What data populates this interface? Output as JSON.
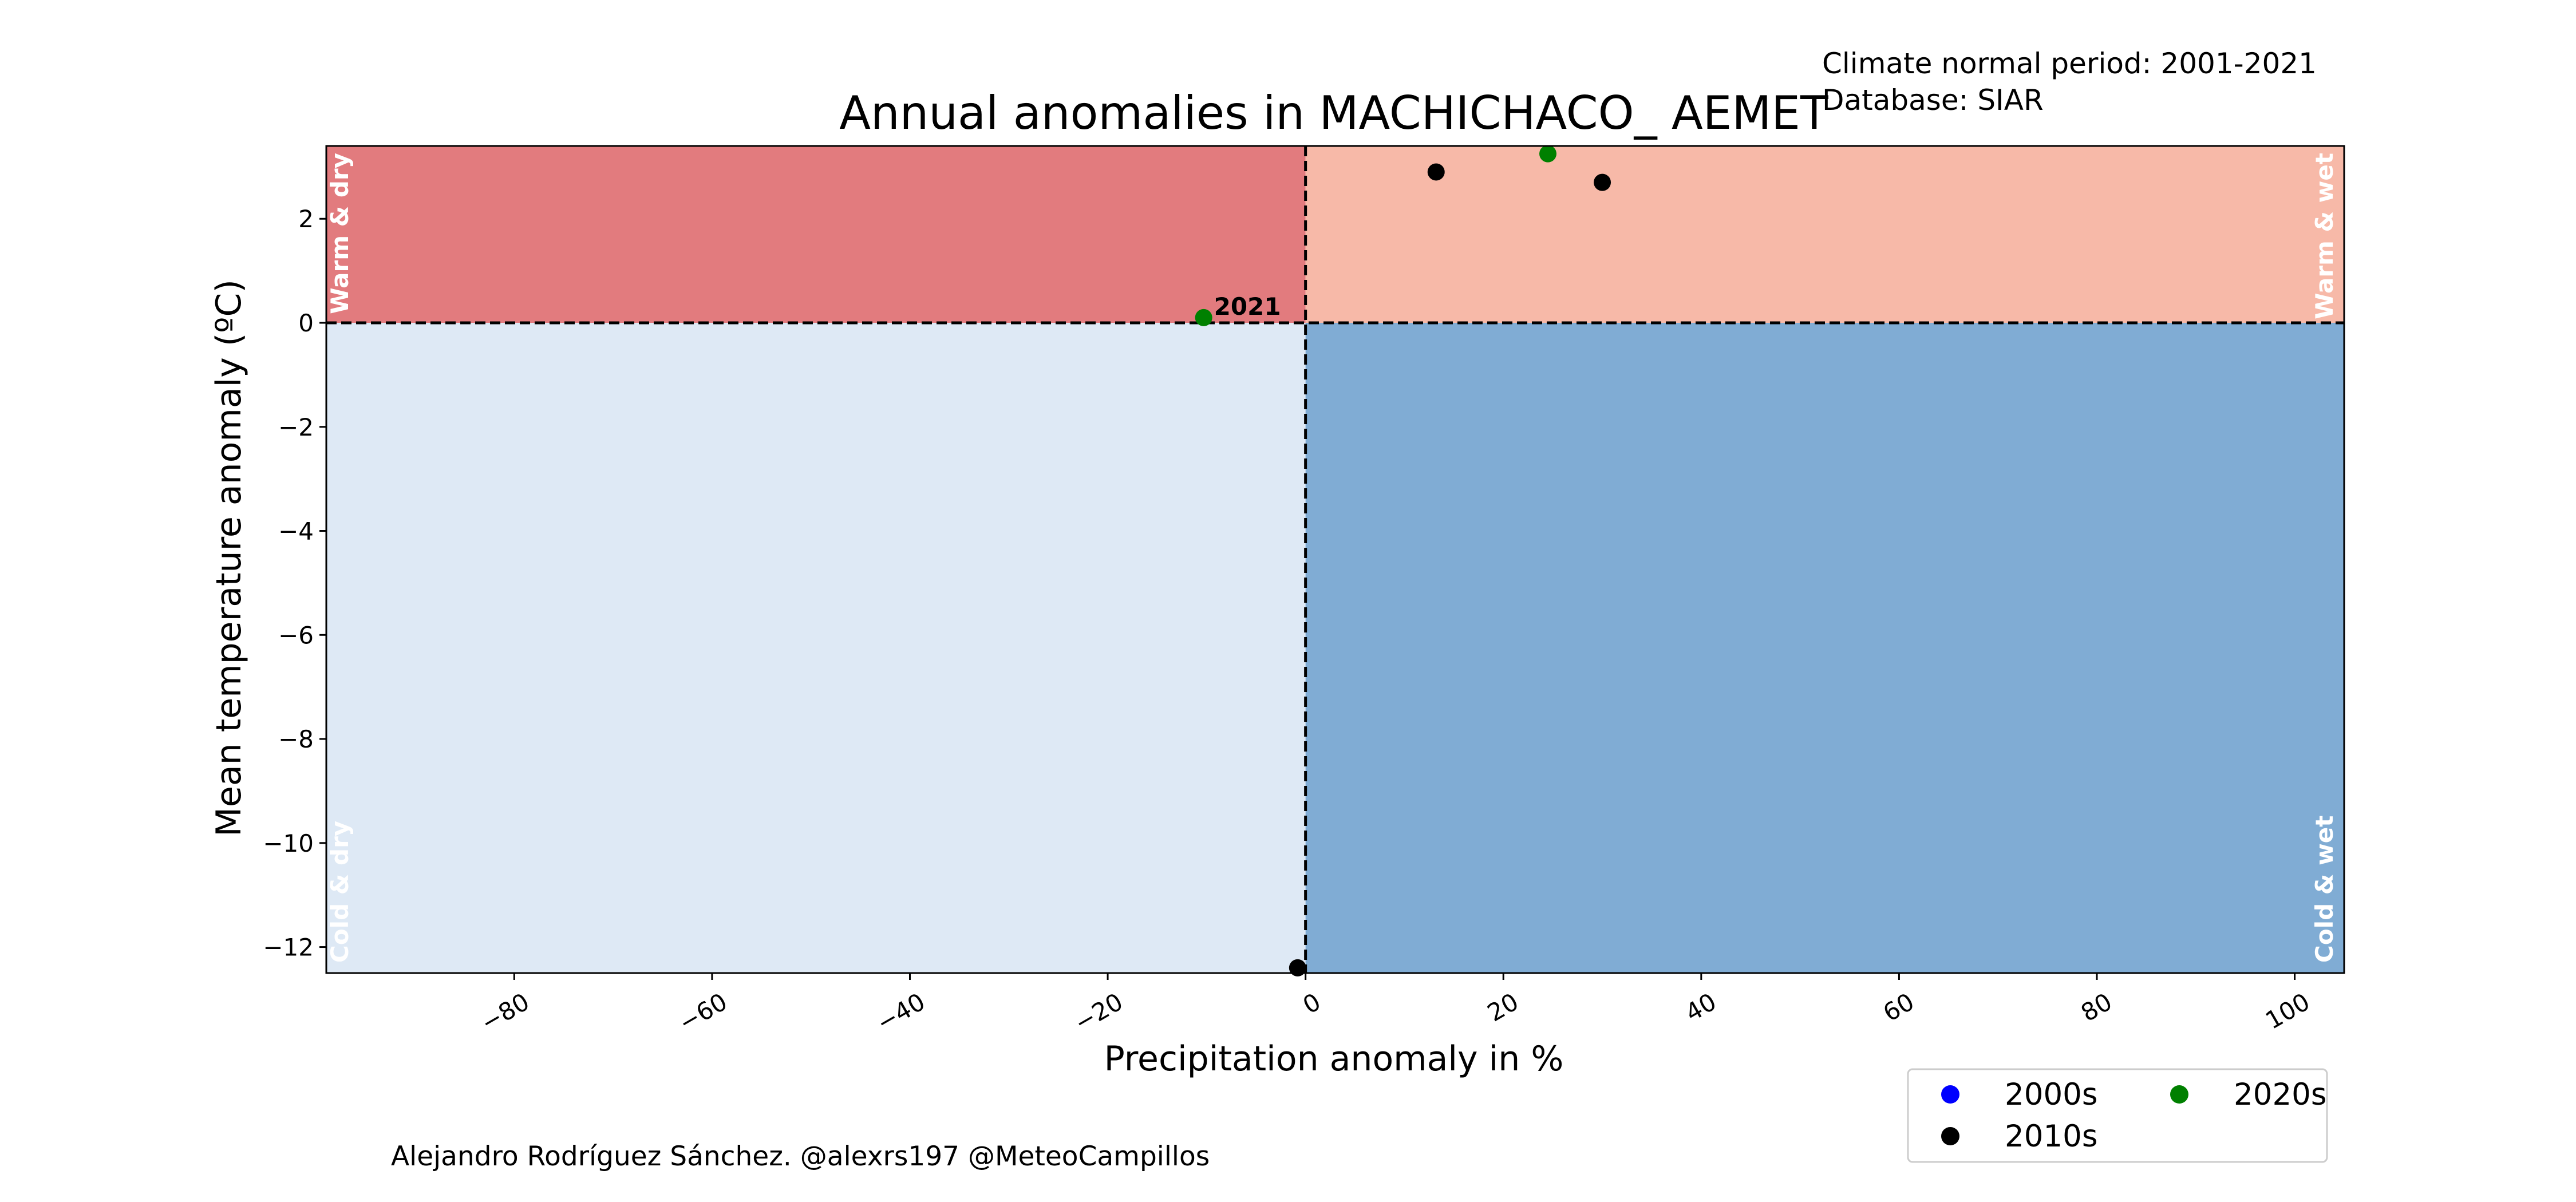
{
  "meta": {
    "normal_period": "Climate normal period: 2001-2021",
    "database": "Database: SIAR"
  },
  "credit": "Alejandro Rodríguez Sánchez. @alexrs197 @MeteoCampillos",
  "chart_data": {
    "type": "scatter",
    "title": "Annual anomalies in MACHICHACO_ AEMET",
    "xlabel": "Precipitation anomaly in %",
    "ylabel": "Mean temperature anomaly (ºC)",
    "xlim": [
      -99,
      105
    ],
    "ylim": [
      -12.5,
      3.4
    ],
    "xticks": [
      -80,
      -60,
      -40,
      -20,
      0,
      20,
      40,
      60,
      80,
      100
    ],
    "xtick_labels": [
      "−80",
      "−60",
      "−40",
      "−20",
      "0",
      "20",
      "40",
      "60",
      "80",
      "100"
    ],
    "yticks": [
      2,
      0,
      -2,
      -4,
      -6,
      -8,
      -10,
      -12
    ],
    "ytick_labels": [
      "2",
      "0",
      "−2",
      "−4",
      "−6",
      "−8",
      "−10",
      "−12"
    ],
    "grid": false,
    "quadrants": [
      {
        "label": "Warm & dry",
        "color": "#e27b7e"
      },
      {
        "label": "Warm & wet",
        "color": "#f7b9a8"
      },
      {
        "label": "Cold & dry",
        "color": "#dee9f5"
      },
      {
        "label": "Cold & wet",
        "color": "#80acd4"
      }
    ],
    "series": [
      {
        "name": "2000s",
        "color": "#0000ff",
        "points": []
      },
      {
        "name": "2010s",
        "color": "#000000",
        "points": [
          {
            "x": 13.2,
            "y": 2.9
          },
          {
            "x": 30.0,
            "y": 2.7
          },
          {
            "x": -0.8,
            "y": -12.4
          }
        ]
      },
      {
        "name": "2020s",
        "color": "#008000",
        "points": [
          {
            "x": 24.5,
            "y": 3.25
          },
          {
            "x": -10.3,
            "y": 0.1,
            "label": "2021"
          }
        ]
      }
    ],
    "legend": {
      "placement": "lower-right",
      "order": [
        "2000s",
        "2020s",
        "2010s"
      ]
    }
  }
}
